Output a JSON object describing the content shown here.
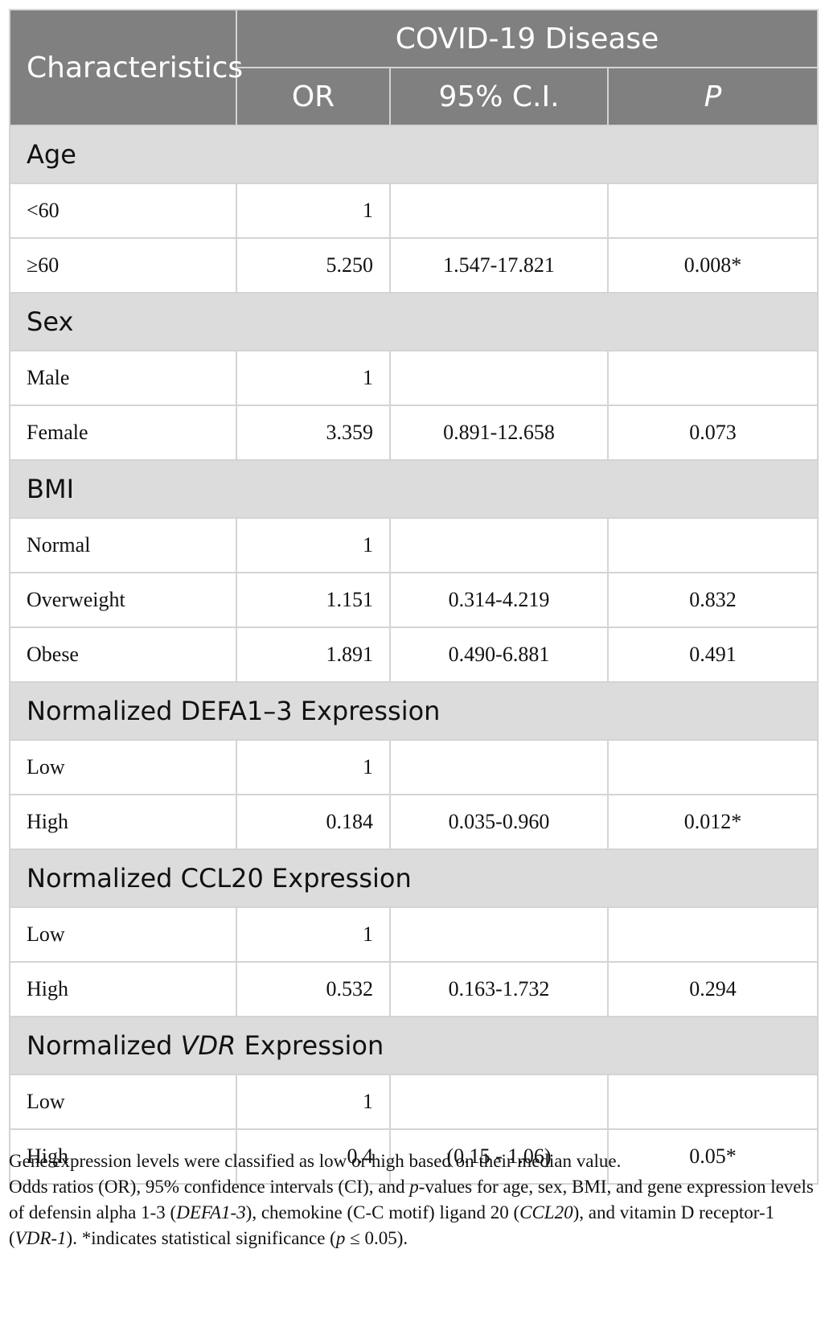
{
  "header": {
    "characteristics": "Characteristics",
    "group_title": "COVID-19 Disease",
    "col_or": "OR",
    "col_ci": "95% C.I.",
    "col_p": "P"
  },
  "groups": [
    {
      "title_parts": [
        "Age"
      ],
      "rows": [
        {
          "label": "<60",
          "or": "1",
          "ci": "",
          "p": ""
        },
        {
          "label": "≥60",
          "or": "5.250",
          "ci": "1.547-17.821",
          "p": "0.008*"
        }
      ]
    },
    {
      "title_parts": [
        "Sex"
      ],
      "rows": [
        {
          "label": "Male",
          "or": "1",
          "ci": "",
          "p": ""
        },
        {
          "label": "Female",
          "or": "3.359",
          "ci": "0.891-12.658",
          "p": "0.073"
        }
      ]
    },
    {
      "title_parts": [
        "BMI"
      ],
      "rows": [
        {
          "label": "Normal",
          "or": "1",
          "ci": "",
          "p": ""
        },
        {
          "label": "Overweight",
          "or": "1.151",
          "ci": "0.314-4.219",
          "p": "0.832"
        },
        {
          "label": "Obese",
          "or": "1.891",
          "ci": "0.490-6.881",
          "p": "0.491"
        }
      ]
    },
    {
      "title_parts": [
        "Normalized DEFA1–3 Expression"
      ],
      "rows": [
        {
          "label": "Low",
          "or": "1",
          "ci": "",
          "p": ""
        },
        {
          "label": "High",
          "or": "0.184",
          "ci": "0.035-0.960",
          "p": "0.012*"
        }
      ]
    },
    {
      "title_parts": [
        "Normalized CCL20 Expression"
      ],
      "rows": [
        {
          "label": "Low",
          "or": "1",
          "ci": "",
          "p": ""
        },
        {
          "label": "High",
          "or": "0.532",
          "ci": "0.163-1.732",
          "p": "0.294"
        }
      ]
    },
    {
      "title_parts": [
        "Normalized ",
        "VDR",
        " Expression"
      ],
      "rows": [
        {
          "label": "Low",
          "or": "1",
          "ci": "",
          "p": ""
        },
        {
          "label": "High",
          "or": "0.4",
          "ci": "(0.15 - 1.06)",
          "p": "0.05*"
        }
      ]
    }
  ],
  "footnote": {
    "line1": "Gene expression levels were classified as low or high based on their median value.",
    "line2_parts": [
      "Odds ratios (OR), 95% confidence intervals (CI), and ",
      "p",
      "-values for age, sex, BMI, and gene expression levels of defensin alpha 1-3 (",
      "DEFA1-3",
      "), chemokine (C-C motif) ligand 20 (",
      "CCL20",
      "), and vitamin D receptor-1 (",
      "VDR-1",
      "). *indicates statistical significance (",
      "p",
      " ≤ 0.05)."
    ]
  }
}
